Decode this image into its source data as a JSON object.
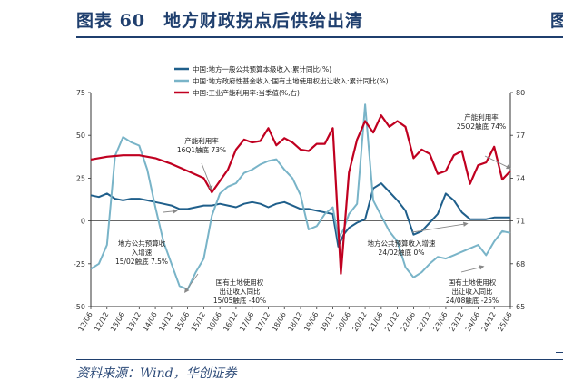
{
  "header": {
    "title": "图表 60　地方财政拐点后供给出清"
  },
  "footer": {
    "source": "资料来源：Wind，华创证券"
  },
  "edge": {
    "right_glyph": "图"
  },
  "colors": {
    "navy": "#1f3f6e",
    "blue": "#1f5f8b",
    "lightblue": "#79b4c8",
    "red": "#c00020"
  },
  "chart_data": {
    "type": "line",
    "x_ticks": [
      "12/06",
      "12/12",
      "13/06",
      "13/12",
      "14/06",
      "14/12",
      "15/06",
      "15/12",
      "16/06",
      "16/12",
      "17/06",
      "17/12",
      "18/06",
      "18/12",
      "19/06",
      "19/12",
      "20/06",
      "20/12",
      "21/06",
      "21/12",
      "22/06",
      "22/12",
      "23/06",
      "23/12",
      "24/06",
      "24/12",
      "25/06"
    ],
    "y_left": {
      "min": -50,
      "max": 75,
      "ticks": [
        -50,
        -25,
        0,
        25,
        50,
        75
      ]
    },
    "y_right": {
      "min": 65,
      "max": 80,
      "ticks": [
        65,
        68,
        71,
        74,
        77,
        80
      ]
    },
    "legend": {
      "placement": "top-left"
    },
    "series": [
      {
        "name": "中国:地方一般公共预算本级收入:累计同比(%)",
        "axis": "left",
        "color": "#1f5f8b",
        "x": [
          "2012-06",
          "2012-09",
          "2012-12",
          "2013-03",
          "2013-06",
          "2013-09",
          "2013-12",
          "2014-03",
          "2014-06",
          "2014-09",
          "2014-12",
          "2015-03",
          "2015-06",
          "2015-09",
          "2015-12",
          "2016-03",
          "2016-06",
          "2016-09",
          "2016-12",
          "2017-03",
          "2017-06",
          "2017-09",
          "2017-12",
          "2018-03",
          "2018-06",
          "2018-09",
          "2018-12",
          "2019-03",
          "2019-06",
          "2019-09",
          "2019-12",
          "2020-02",
          "2020-04",
          "2020-06",
          "2020-09",
          "2020-12",
          "2021-03",
          "2021-06",
          "2021-09",
          "2021-12",
          "2022-03",
          "2022-06",
          "2022-09",
          "2022-12",
          "2023-03",
          "2023-06",
          "2023-09",
          "2023-12",
          "2024-03",
          "2024-06",
          "2024-09",
          "2024-12",
          "2025-03",
          "2025-06"
        ],
        "values": [
          15,
          14,
          16,
          13,
          12,
          13,
          13,
          12,
          11,
          10,
          9,
          7,
          7,
          8,
          9,
          9,
          10,
          9,
          8,
          10,
          11,
          10,
          8,
          10,
          11,
          9,
          7,
          7,
          6,
          5,
          4,
          -15,
          -8,
          -4,
          -1,
          1,
          19,
          22,
          17,
          12,
          6,
          -8,
          -6,
          -1,
          4,
          16,
          12,
          5,
          1,
          1,
          1,
          2,
          2,
          2
        ]
      },
      {
        "name": "中国:地方政府性基金收入:国有土地使用权出让收入:累计同比(%)",
        "axis": "left",
        "color": "#79b4c8",
        "x": [
          "2012-06",
          "2012-09",
          "2012-12",
          "2013-03",
          "2013-06",
          "2013-09",
          "2013-12",
          "2014-03",
          "2014-06",
          "2014-09",
          "2014-12",
          "2015-03",
          "2015-06",
          "2015-09",
          "2015-12",
          "2016-03",
          "2016-06",
          "2016-09",
          "2016-12",
          "2017-03",
          "2017-06",
          "2017-09",
          "2017-12",
          "2018-03",
          "2018-06",
          "2018-09",
          "2018-12",
          "2019-03",
          "2019-06",
          "2019-09",
          "2019-12",
          "2020-02",
          "2020-04",
          "2020-06",
          "2020-09",
          "2020-12",
          "2021-03",
          "2021-06",
          "2021-09",
          "2021-12",
          "2022-03",
          "2022-06",
          "2022-09",
          "2022-12",
          "2023-03",
          "2023-06",
          "2023-09",
          "2023-12",
          "2024-03",
          "2024-06",
          "2024-09",
          "2024-12",
          "2025-03",
          "2025-06"
        ],
        "values": [
          -28,
          -25,
          -14,
          38,
          49,
          46,
          44,
          30,
          8,
          -12,
          -25,
          -38,
          -40,
          -30,
          -22,
          3,
          16,
          20,
          22,
          28,
          30,
          33,
          35,
          36,
          30,
          25,
          15,
          -5,
          -3,
          4,
          8,
          -10,
          -5,
          4,
          10,
          68,
          12,
          3,
          -6,
          -12,
          -27,
          -33,
          -30,
          -25,
          -21,
          -22,
          -20,
          -18,
          -16,
          -14,
          -20,
          -12,
          -6,
          -7
        ]
      },
      {
        "name": "中国:工业产能利用率:当季值(%,右)",
        "axis": "right",
        "color": "#c00020",
        "x": [
          "2012-06",
          "2012-12",
          "2013-06",
          "2013-12",
          "2014-06",
          "2014-12",
          "2015-06",
          "2015-12",
          "2016-03",
          "2016-06",
          "2016-09",
          "2016-12",
          "2017-03",
          "2017-06",
          "2017-09",
          "2017-12",
          "2018-03",
          "2018-06",
          "2018-09",
          "2018-12",
          "2019-03",
          "2019-06",
          "2019-09",
          "2019-12",
          "2020-03",
          "2020-06",
          "2020-09",
          "2020-12",
          "2021-03",
          "2021-06",
          "2021-09",
          "2021-12",
          "2022-03",
          "2022-06",
          "2022-09",
          "2022-12",
          "2023-03",
          "2023-06",
          "2023-09",
          "2023-12",
          "2024-03",
          "2024-06",
          "2024-09",
          "2024-12",
          "2025-03",
          "2025-06"
        ],
        "values": [
          75.3,
          75.5,
          75.6,
          75.6,
          75.4,
          75.0,
          74.5,
          74.0,
          73.0,
          73.8,
          74.6,
          76.0,
          76.7,
          76.5,
          76.6,
          77.5,
          76.3,
          76.8,
          76.5,
          76.0,
          75.9,
          76.4,
          76.4,
          77.5,
          67.3,
          74.4,
          76.7,
          78.0,
          77.2,
          78.4,
          77.6,
          78.0,
          77.6,
          75.4,
          76.0,
          75.7,
          74.3,
          74.5,
          75.6,
          75.9,
          73.6,
          74.9,
          75.1,
          76.2,
          73.9,
          74.5
        ]
      }
    ],
    "annotations": [
      {
        "lines": [
          "产能利用率",
          "16Q1触底 73%"
        ],
        "arrow": "down",
        "x": "2016-03",
        "axis": "right",
        "value": 73.0
      },
      {
        "lines": [
          "产能利用率",
          "25Q2触底 74%"
        ],
        "arrow": "down",
        "x": "2025-06",
        "axis": "right",
        "value": 74.5
      },
      {
        "lines": [
          "地方公共预算收",
          "入增速",
          "15/02触底 7.5%"
        ],
        "arrow": "up",
        "x": "2015-02",
        "axis": "left",
        "value": 7.5
      },
      {
        "lines": [
          "国有土地使用权",
          "出让收入同比",
          "15/05触底 -40%"
        ],
        "arrow": "up",
        "x": "2015-05",
        "axis": "left",
        "value": -40
      },
      {
        "lines": [
          "地方公共预算收入增速",
          "24/02触底 0%"
        ],
        "arrow": "up",
        "x": "2024-02",
        "axis": "left",
        "value": 0
      },
      {
        "lines": [
          "国有土地使用权",
          "出让收入同比",
          "24/08触底 -25%"
        ],
        "arrow": "up",
        "x": "2024-08",
        "axis": "left",
        "value": -25
      }
    ]
  }
}
